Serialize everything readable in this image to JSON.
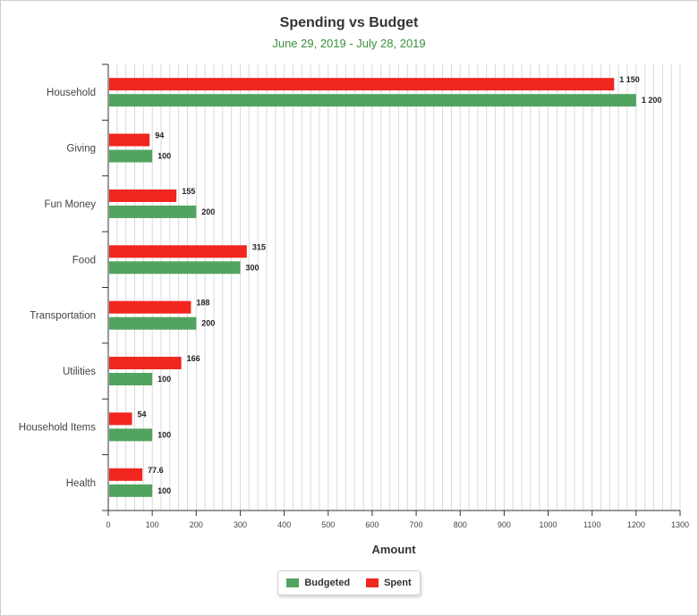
{
  "chart_data": {
    "type": "bar",
    "orientation": "horizontal",
    "title": "Spending vs Budget",
    "subtitle": "June 29, 2019 - July 28, 2019",
    "xlabel": "Amount",
    "ylabel": "",
    "xlim": [
      0,
      1300
    ],
    "x_ticks": [
      0,
      100,
      200,
      300,
      400,
      500,
      600,
      700,
      800,
      900,
      1000,
      1100,
      1200,
      1300
    ],
    "grid": "vertical minor lines every 20",
    "legend_position": "bottom-center",
    "categories": [
      "Household",
      "Giving",
      "Fun Money",
      "Food",
      "Transportation",
      "Utilities",
      "Household Items",
      "Health"
    ],
    "series": [
      {
        "name": "Spent",
        "color": "#f0261f",
        "values": [
          1150,
          94,
          155,
          315,
          188,
          166,
          54,
          77.6
        ],
        "labels": [
          "1 150",
          "94",
          "155",
          "315",
          "188",
          "166",
          "54",
          "77.6"
        ]
      },
      {
        "name": "Budgeted",
        "color": "#52a35f",
        "values": [
          1200,
          100,
          200,
          300,
          200,
          100,
          100,
          100
        ],
        "labels": [
          "1 200",
          "100",
          "200",
          "300",
          "200",
          "100",
          "100",
          "100"
        ]
      }
    ]
  },
  "legend": {
    "budgeted_label": "Budgeted",
    "spent_label": "Spent"
  }
}
